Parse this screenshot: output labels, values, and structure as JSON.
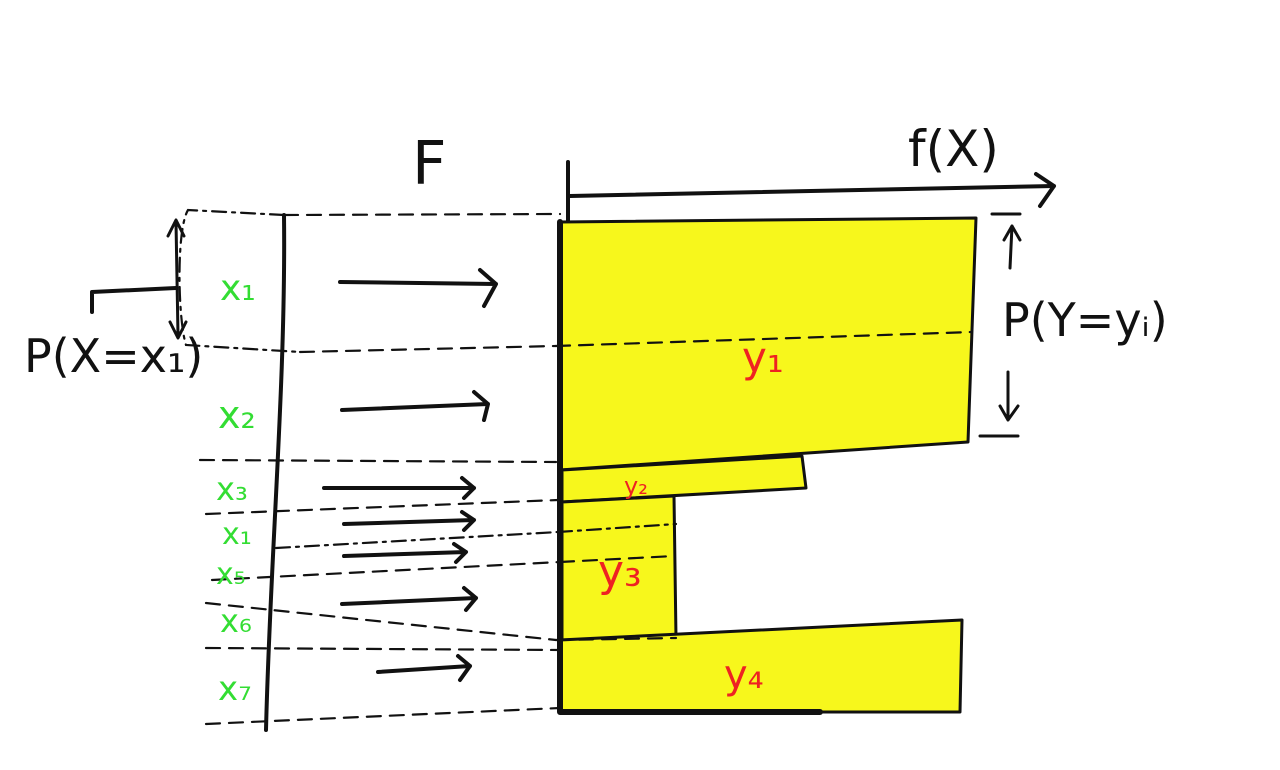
{
  "diagram": {
    "function_label": "F",
    "output_axis_label": "f(X)",
    "prob_x_label": "P(X=x₁)",
    "prob_y_label": "P(Y=yᵢ)",
    "x_labels": [
      "x₁",
      "x₂",
      "x₃",
      "x₁",
      "x₅",
      "x₆",
      "x₇"
    ],
    "y_labels": [
      "y₁",
      "y₂",
      "y₃",
      "y₄"
    ],
    "colors": {
      "ink": "#111111",
      "x_label": "#33dd33",
      "y_label": "#ee2222",
      "bar_fill": "#f7f71c"
    }
  }
}
